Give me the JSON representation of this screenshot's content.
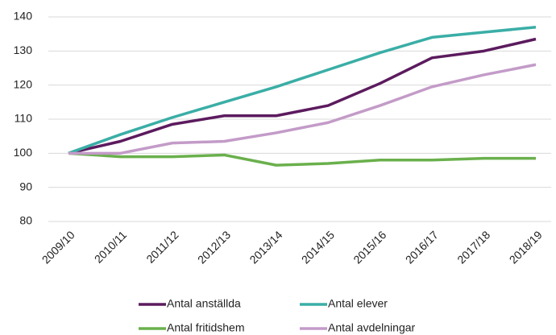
{
  "chart_data": {
    "type": "line",
    "categories": [
      "2009/10",
      "2010/11",
      "2011/12",
      "2012/13",
      "2013/14",
      "2014/15",
      "2015/16",
      "2016/17",
      "2017/18",
      "2018/19"
    ],
    "series": [
      {
        "name": "Antal anställda",
        "color": "#5c1b5e",
        "values": [
          100,
          103.5,
          108.5,
          111,
          111,
          114,
          120.5,
          128,
          130,
          133.5
        ]
      },
      {
        "name": "Antal elever",
        "color": "#3aaea6",
        "values": [
          100,
          105.5,
          110.5,
          115,
          119.5,
          124.5,
          129.5,
          134,
          135.5,
          137
        ]
      },
      {
        "name": "Antal fritidshem",
        "color": "#6ab04c",
        "values": [
          100,
          99,
          99,
          99.5,
          96.5,
          97,
          98,
          98,
          98.5,
          98.5
        ]
      },
      {
        "name": "Antal avdelningar",
        "color": "#c39bc8",
        "values": [
          100,
          100,
          103,
          103.5,
          106,
          109,
          114,
          119.5,
          123,
          126
        ]
      }
    ],
    "ylim": [
      80,
      140
    ],
    "yticks": [
      80,
      90,
      100,
      110,
      120,
      130,
      140
    ],
    "grid": true
  }
}
